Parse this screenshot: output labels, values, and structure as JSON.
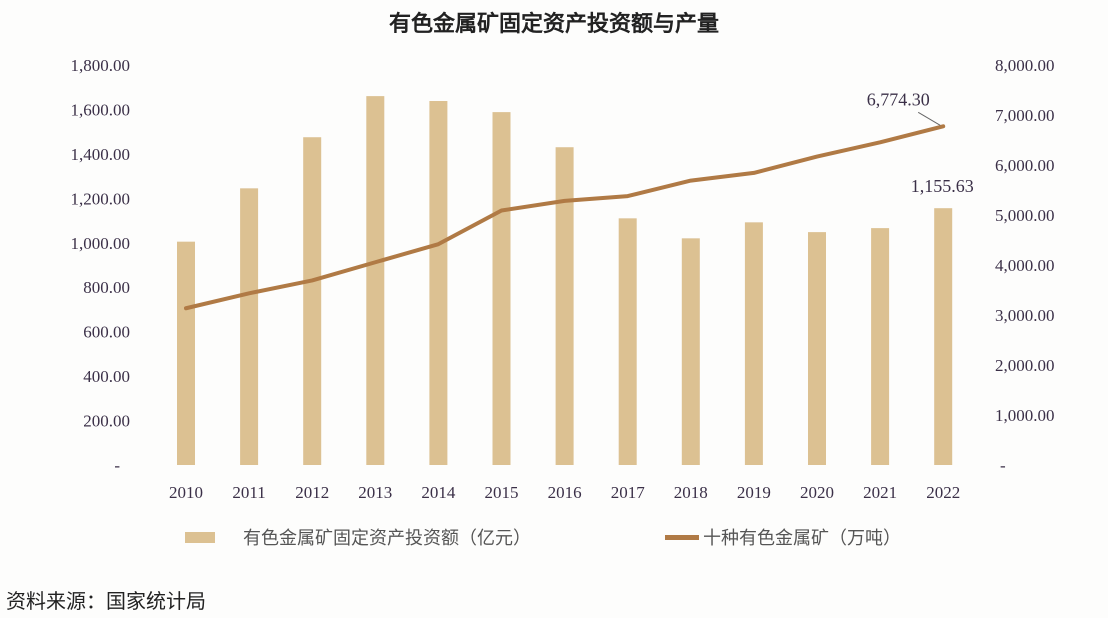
{
  "chart_data": {
    "type": "bar+line",
    "title": "有色金属矿固定资产投资额与产量",
    "categories": [
      "2010",
      "2011",
      "2012",
      "2013",
      "2014",
      "2015",
      "2016",
      "2017",
      "2018",
      "2019",
      "2020",
      "2021",
      "2022"
    ],
    "series": [
      {
        "name": "有色金属矿固定资产投资额（亿元）",
        "type": "bar",
        "axis": "left",
        "color": "#dcc192",
        "values": [
          1005,
          1245,
          1475,
          1660,
          1638,
          1588,
          1430,
          1110,
          1020,
          1092,
          1048,
          1066,
          1155.63
        ]
      },
      {
        "name": "十种有色金属矿（万吨）",
        "type": "line",
        "axis": "right",
        "color": "#b07a45",
        "values": [
          3135,
          3434,
          3691,
          4055,
          4417,
          5090,
          5283,
          5378,
          5688,
          5842,
          6168,
          6454,
          6774.3
        ]
      }
    ],
    "left_axis": {
      "range": [
        0,
        1800
      ],
      "ticks": [
        "-",
        "200.00",
        "400.00",
        "600.00",
        "800.00",
        "1,000.00",
        "1,200.00",
        "1,400.00",
        "1,600.00",
        "1,800.00"
      ]
    },
    "right_axis": {
      "range": [
        0,
        8000
      ],
      "ticks": [
        "-",
        "1,000.00",
        "2,000.00",
        "3,000.00",
        "4,000.00",
        "5,000.00",
        "6,000.00",
        "7,000.00",
        "8,000.00"
      ]
    },
    "annotations": [
      "6,774.30",
      "1,155.63"
    ],
    "grid": false,
    "legend_position": "bottom"
  },
  "source": "资料来源：国家统计局"
}
